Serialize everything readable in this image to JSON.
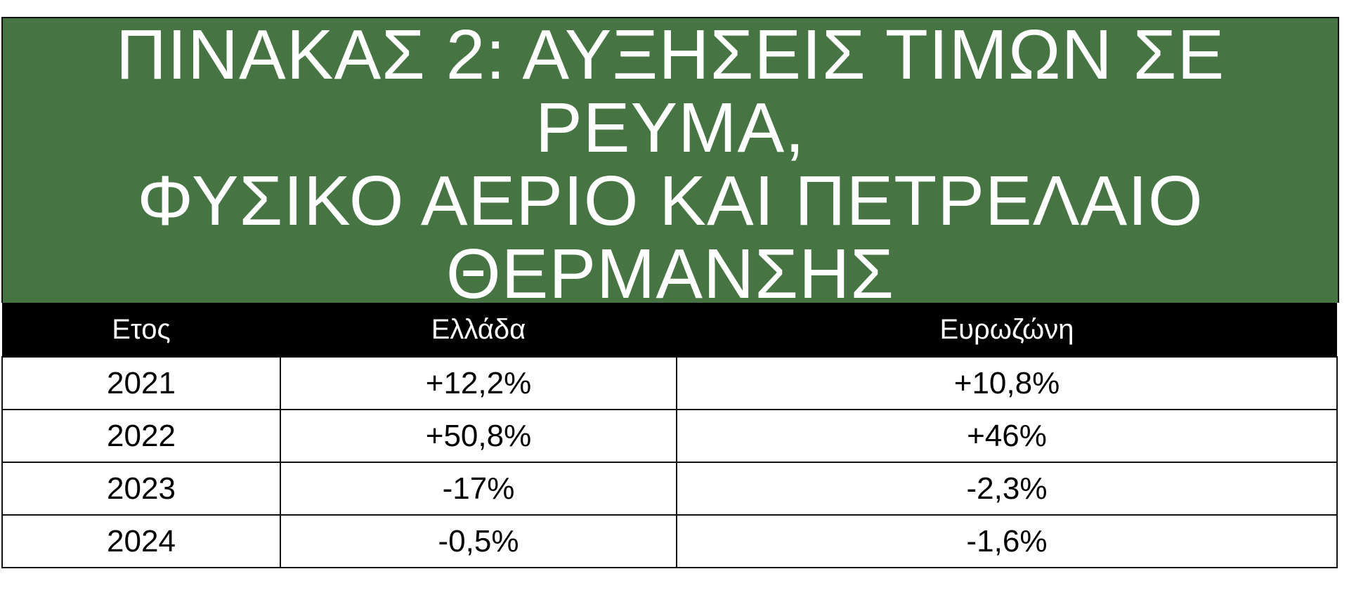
{
  "title_lines": [
    "ΠΙΝΑΚΑΣ 2: ΑΥΞΗΣΕΙΣ ΤΙΜΩΝ ΣΕ",
    "ΡΕΥΜΑ,",
    "ΦΥΣΙΚΟ ΑΕΡΙΟ ΚΑΙ ΠΕΤΡΕΛΑΙΟ",
    "ΘΕΡΜΑΝΣΗΣ"
  ],
  "colors": {
    "header_green": "#467443",
    "header_black": "#000000"
  },
  "table": {
    "columns": [
      "Ετος",
      "Ελλάδα",
      "Ευρωζώνη"
    ],
    "rows": [
      [
        "2021",
        "+12,2%",
        "+10,8%"
      ],
      [
        "2022",
        "+50,8%",
        "+46%"
      ],
      [
        "2023",
        "-17%",
        "-2,3%"
      ],
      [
        "2024",
        "-0,5%",
        "-1,6%"
      ]
    ]
  }
}
